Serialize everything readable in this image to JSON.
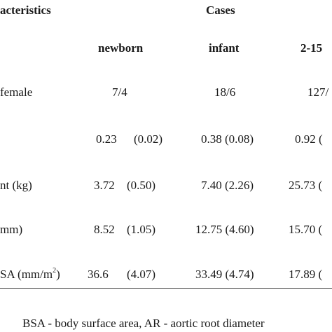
{
  "header": {
    "characteristics": "acteristics",
    "cases": "Cases",
    "columns": [
      "newborn",
      "infant",
      "2-15"
    ]
  },
  "rows": [
    {
      "label": "female",
      "newborn": "7/4",
      "infant": "18/6",
      "older": "127/"
    },
    {
      "label": "",
      "newborn_mean": "0.23",
      "newborn_sd": "(0.02)",
      "infant": "0.38 (0.08)",
      "older": "0.92 ("
    },
    {
      "label_main": "nt (kg)",
      "newborn_mean": "3.72",
      "newborn_sd": "(0.50)",
      "infant": "7.40 (2.26)",
      "older": "25.73 ("
    },
    {
      "label": "mm)",
      "newborn_mean": "8.52",
      "newborn_sd": "(1.05)",
      "infant": "12.75 (4.60)",
      "older": "15.70 ("
    },
    {
      "label_main": "SA (mm/m",
      "label_sup": "2",
      "label_end": ")",
      "newborn_mean": "36.6",
      "newborn_sd": "(4.07)",
      "infant": "33.49 (4.74)",
      "older": "17.89 ("
    }
  ],
  "footnote": "BSA - body surface area, AR - aortic root diameter"
}
